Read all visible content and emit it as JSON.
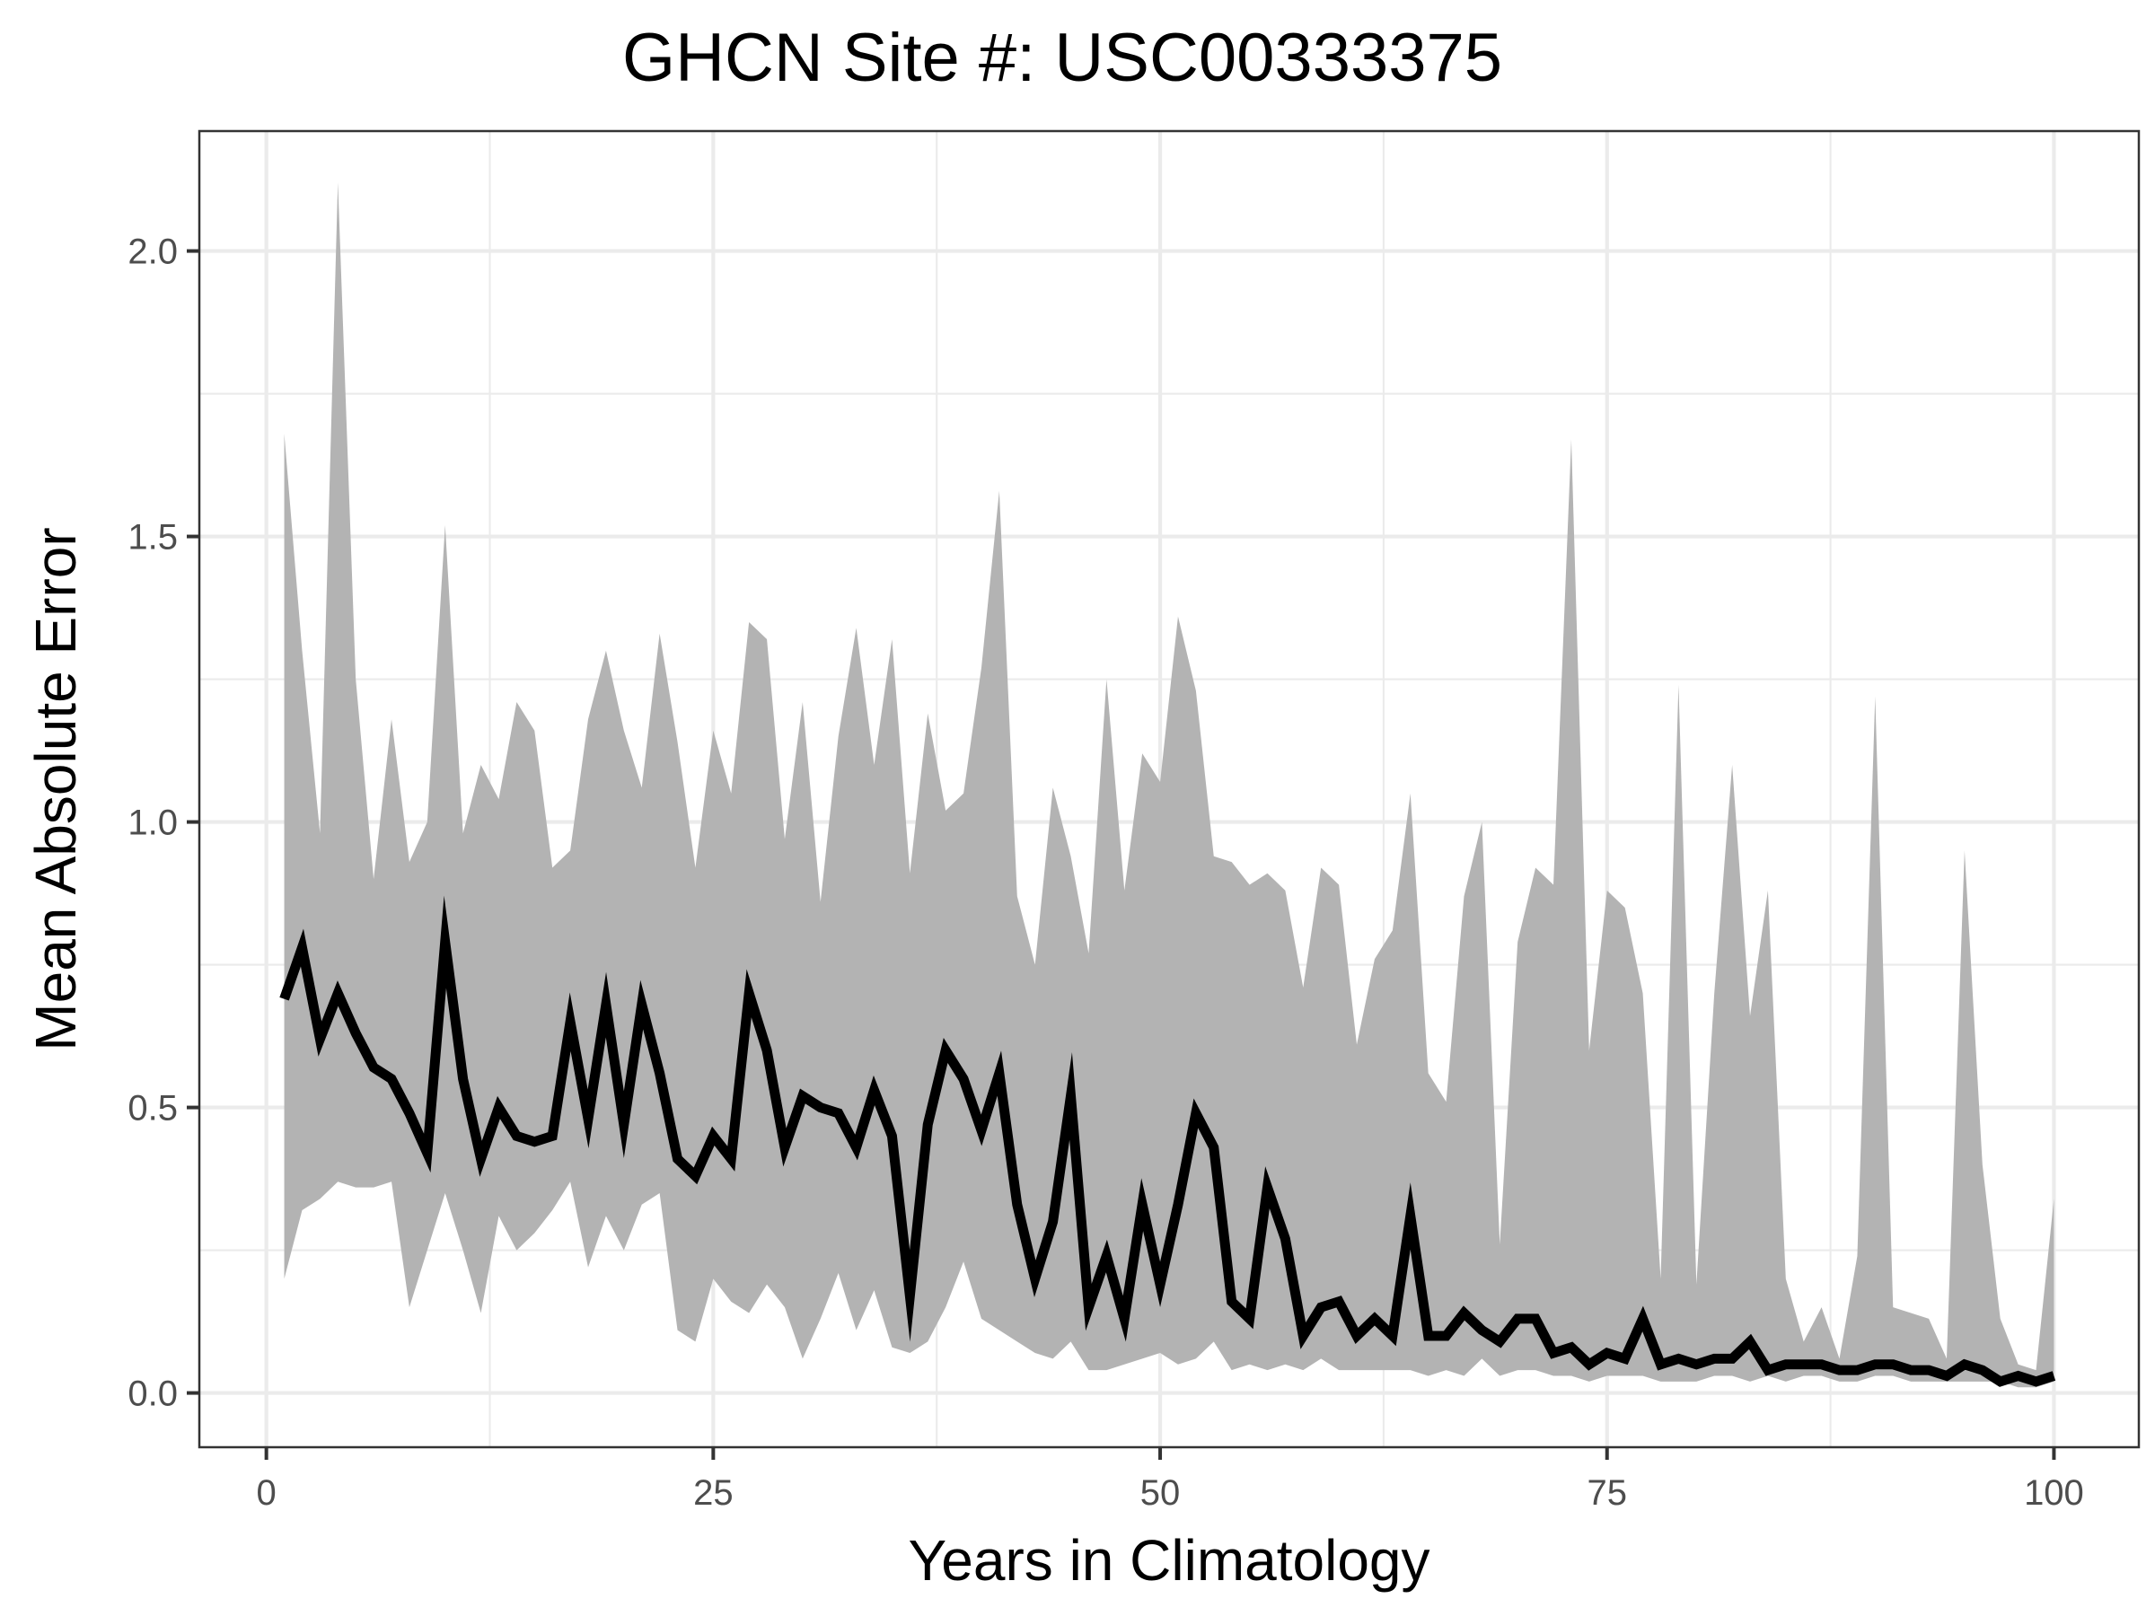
{
  "chart_data": {
    "type": "line",
    "title": "GHCN Site #: USC00333375",
    "xlabel": "Years in Climatology",
    "ylabel": "Mean Absolute Error",
    "xlim": [
      -3.75,
      104.75
    ],
    "ylim": [
      -0.095,
      2.21
    ],
    "x_ticks": [
      0,
      25,
      50,
      75,
      100
    ],
    "x_tick_labels": [
      "0",
      "25",
      "50",
      "75",
      "100"
    ],
    "y_ticks": [
      0.0,
      0.5,
      1.0,
      1.5,
      2.0
    ],
    "y_tick_labels": [
      "0.0",
      "0.5",
      "1.0",
      "1.5",
      "2.0"
    ],
    "grid": true,
    "colors": {
      "band": "#b3b3b3",
      "line": "#000000",
      "grid": "#ebebeb",
      "panel_border": "#333333",
      "tick_text": "#4d4d4d"
    },
    "series": [
      {
        "name": "mean",
        "x": [
          1,
          2,
          3,
          4,
          5,
          6,
          7,
          8,
          9,
          10,
          11,
          12,
          13,
          14,
          15,
          16,
          17,
          18,
          19,
          20,
          21,
          22,
          23,
          24,
          25,
          26,
          27,
          28,
          29,
          30,
          31,
          32,
          33,
          34,
          35,
          36,
          37,
          38,
          39,
          40,
          41,
          42,
          43,
          44,
          45,
          46,
          47,
          48,
          49,
          50,
          51,
          52,
          53,
          54,
          55,
          56,
          57,
          58,
          59,
          60,
          61,
          62,
          63,
          64,
          65,
          66,
          67,
          68,
          69,
          70,
          71,
          72,
          73,
          74,
          75,
          76,
          77,
          78,
          79,
          80,
          81,
          82,
          83,
          84,
          85,
          86,
          87,
          88,
          89,
          90,
          91,
          92,
          93,
          94,
          95,
          96,
          97,
          98,
          99,
          100
        ],
        "values": [
          0.69,
          0.78,
          0.62,
          0.7,
          0.63,
          0.57,
          0.55,
          0.49,
          0.42,
          0.79,
          0.55,
          0.41,
          0.5,
          0.45,
          0.44,
          0.45,
          0.65,
          0.48,
          0.68,
          0.47,
          0.68,
          0.56,
          0.41,
          0.38,
          0.45,
          0.41,
          0.7,
          0.6,
          0.43,
          0.52,
          0.5,
          0.49,
          0.43,
          0.53,
          0.45,
          0.17,
          0.47,
          0.6,
          0.55,
          0.46,
          0.56,
          0.33,
          0.2,
          0.3,
          0.52,
          0.15,
          0.24,
          0.13,
          0.33,
          0.19,
          0.33,
          0.49,
          0.43,
          0.16,
          0.13,
          0.36,
          0.27,
          0.1,
          0.15,
          0.16,
          0.1,
          0.13,
          0.1,
          0.31,
          0.1,
          0.1,
          0.14,
          0.11,
          0.09,
          0.13,
          0.13,
          0.07,
          0.08,
          0.05,
          0.07,
          0.06,
          0.13,
          0.05,
          0.06,
          0.05,
          0.06,
          0.06,
          0.09,
          0.04,
          0.05,
          0.05,
          0.05,
          0.04,
          0.04,
          0.05,
          0.05,
          0.04,
          0.04,
          0.03,
          0.05,
          0.04,
          0.02,
          0.03,
          0.02,
          0.03
        ]
      },
      {
        "name": "upper",
        "values": [
          1.68,
          1.3,
          0.98,
          2.12,
          1.25,
          0.9,
          1.18,
          0.93,
          1.0,
          1.52,
          0.98,
          1.1,
          1.04,
          1.21,
          1.16,
          0.92,
          0.95,
          1.18,
          1.3,
          1.16,
          1.06,
          1.33,
          1.14,
          0.92,
          1.16,
          1.05,
          1.35,
          1.32,
          0.97,
          1.21,
          0.86,
          1.15,
          1.34,
          1.1,
          1.32,
          0.91,
          1.19,
          1.02,
          1.05,
          1.27,
          1.58,
          0.87,
          0.75,
          1.06,
          0.94,
          0.77,
          1.25,
          0.88,
          1.12,
          1.07,
          1.36,
          1.23,
          0.94,
          0.93,
          0.89,
          0.91,
          0.88,
          0.71,
          0.92,
          0.89,
          0.61,
          0.76,
          0.81,
          1.05,
          0.56,
          0.51,
          0.87,
          1.0,
          0.26,
          0.79,
          0.92,
          0.89,
          1.67,
          0.6,
          0.88,
          0.85,
          0.7,
          0.2,
          1.24,
          0.19,
          0.7,
          1.1,
          0.66,
          0.88,
          0.2,
          0.09,
          0.15,
          0.06,
          0.24,
          1.22,
          0.15,
          0.14,
          0.13,
          0.06,
          0.95,
          0.4,
          0.13,
          0.05,
          0.04,
          0.34
        ]
      },
      {
        "name": "lower",
        "values": [
          0.2,
          0.32,
          0.34,
          0.37,
          0.36,
          0.36,
          0.37,
          0.15,
          0.25,
          0.35,
          0.25,
          0.14,
          0.31,
          0.25,
          0.28,
          0.32,
          0.37,
          0.22,
          0.31,
          0.25,
          0.33,
          0.35,
          0.11,
          0.09,
          0.2,
          0.16,
          0.14,
          0.19,
          0.15,
          0.06,
          0.13,
          0.21,
          0.11,
          0.18,
          0.08,
          0.07,
          0.09,
          0.15,
          0.23,
          0.13,
          0.11,
          0.09,
          0.07,
          0.06,
          0.09,
          0.04,
          0.04,
          0.05,
          0.06,
          0.07,
          0.05,
          0.06,
          0.09,
          0.04,
          0.05,
          0.04,
          0.05,
          0.04,
          0.06,
          0.04,
          0.04,
          0.04,
          0.04,
          0.04,
          0.03,
          0.04,
          0.03,
          0.06,
          0.03,
          0.04,
          0.04,
          0.03,
          0.03,
          0.02,
          0.03,
          0.03,
          0.03,
          0.02,
          0.02,
          0.02,
          0.03,
          0.03,
          0.02,
          0.03,
          0.02,
          0.03,
          0.03,
          0.02,
          0.02,
          0.03,
          0.03,
          0.02,
          0.02,
          0.02,
          0.02,
          0.02,
          0.02,
          0.01,
          0.01,
          0.02
        ]
      }
    ]
  }
}
